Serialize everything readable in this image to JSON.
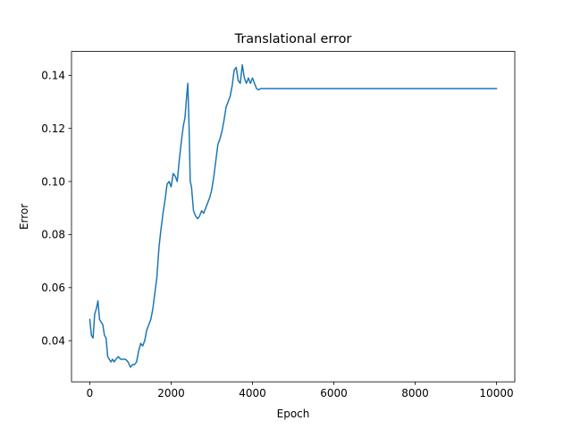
{
  "chart_data": {
    "type": "line",
    "title": "Translational error",
    "xlabel": "Epoch",
    "ylabel": "Error",
    "xlim": [
      -450,
      10450
    ],
    "ylim": [
      0.0245,
      0.149
    ],
    "xticks": [
      0,
      2000,
      4000,
      6000,
      8000,
      10000
    ],
    "xtick_labels": [
      "0",
      "2000",
      "4000",
      "6000",
      "8000",
      "10000"
    ],
    "yticks": [
      0.04,
      0.06,
      0.08,
      0.1,
      0.12,
      0.14
    ],
    "ytick_labels": [
      "0.04",
      "0.06",
      "0.08",
      "0.10",
      "0.12",
      "0.14"
    ],
    "grid": false,
    "legend": "none",
    "series": [
      {
        "color": "#1f77b4",
        "x": [
          0,
          40,
          80,
          120,
          160,
          200,
          240,
          280,
          320,
          360,
          400,
          440,
          480,
          520,
          560,
          600,
          640,
          700,
          760,
          820,
          880,
          940,
          1000,
          1050,
          1100,
          1150,
          1200,
          1250,
          1300,
          1350,
          1400,
          1450,
          1500,
          1550,
          1600,
          1650,
          1700,
          1750,
          1800,
          1850,
          1900,
          1950,
          2000,
          2050,
          2100,
          2150,
          2200,
          2250,
          2300,
          2340,
          2380,
          2410,
          2440,
          2470,
          2500,
          2550,
          2600,
          2650,
          2700,
          2750,
          2800,
          2850,
          2900,
          2950,
          3000,
          3050,
          3100,
          3150,
          3200,
          3250,
          3300,
          3350,
          3400,
          3450,
          3500,
          3550,
          3600,
          3650,
          3700,
          3750,
          3800,
          3850,
          3900,
          3950,
          4000,
          4050,
          4100,
          4150,
          4200,
          4250,
          4300,
          5000,
          6000,
          7000,
          8000,
          9000,
          10000
        ],
        "y": [
          0.048,
          0.042,
          0.041,
          0.05,
          0.052,
          0.055,
          0.048,
          0.047,
          0.046,
          0.042,
          0.041,
          0.034,
          0.033,
          0.032,
          0.033,
          0.032,
          0.033,
          0.034,
          0.033,
          0.033,
          0.033,
          0.032,
          0.03,
          0.031,
          0.031,
          0.032,
          0.036,
          0.039,
          0.038,
          0.04,
          0.044,
          0.046,
          0.048,
          0.052,
          0.058,
          0.064,
          0.075,
          0.082,
          0.088,
          0.093,
          0.099,
          0.1,
          0.098,
          0.103,
          0.102,
          0.1,
          0.108,
          0.115,
          0.121,
          0.124,
          0.132,
          0.137,
          0.121,
          0.1,
          0.098,
          0.089,
          0.087,
          0.086,
          0.087,
          0.089,
          0.088,
          0.09,
          0.092,
          0.094,
          0.097,
          0.102,
          0.108,
          0.114,
          0.116,
          0.119,
          0.123,
          0.128,
          0.13,
          0.132,
          0.136,
          0.142,
          0.143,
          0.138,
          0.137,
          0.144,
          0.139,
          0.137,
          0.139,
          0.137,
          0.139,
          0.137,
          0.135,
          0.1345,
          0.135,
          0.135,
          0.135,
          0.135,
          0.135,
          0.135,
          0.135,
          0.135,
          0.135
        ]
      }
    ]
  }
}
